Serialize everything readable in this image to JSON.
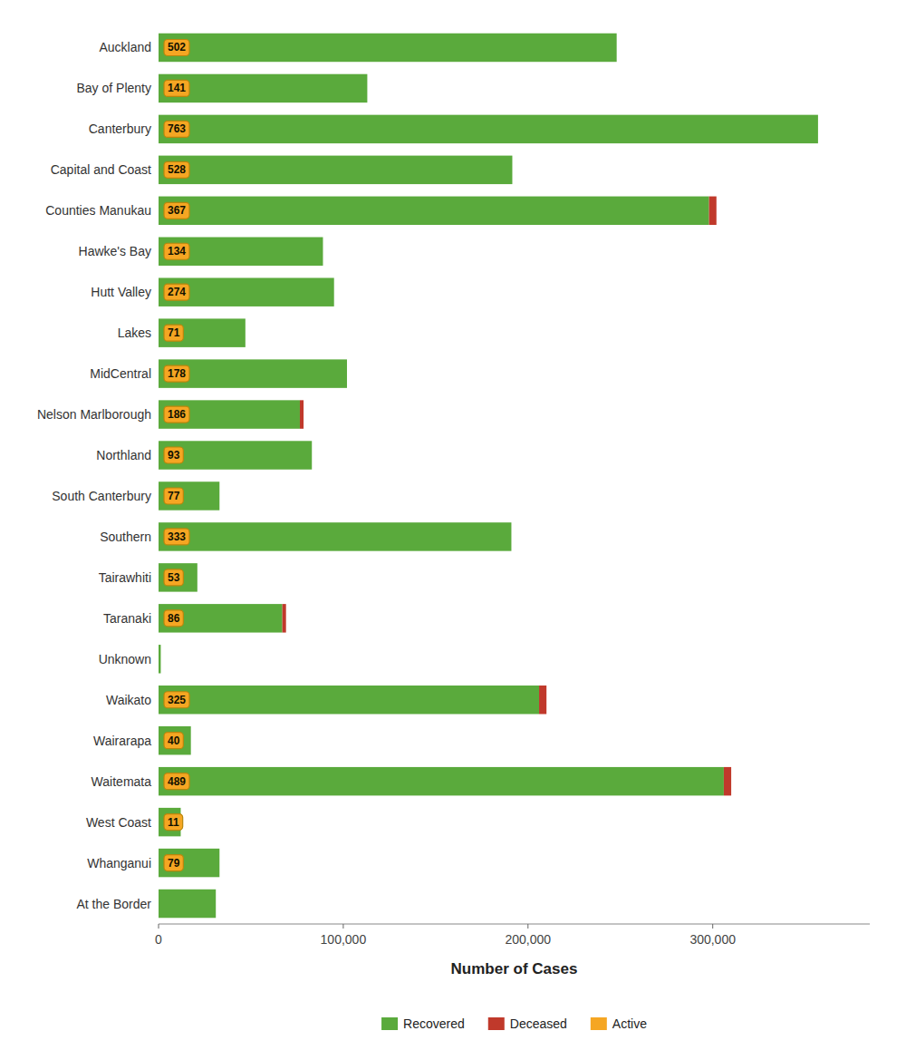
{
  "chart_data": {
    "type": "bar",
    "orientation": "horizontal",
    "stacked": true,
    "categories": [
      "Auckland",
      "Bay of Plenty",
      "Canterbury",
      "Capital and Coast",
      "Counties Manukau",
      "Hawke's Bay",
      "Hutt Valley",
      "Lakes",
      "MidCentral",
      "Nelson Marlborough",
      "Northland",
      "South Canterbury",
      "Southern",
      "Tairawhiti",
      "Taranaki",
      "Unknown",
      "Waikato",
      "Wairarapa",
      "Waitemata",
      "West Coast",
      "Whanganui",
      "At the Border"
    ],
    "series": [
      {
        "name": "Recovered",
        "color": "#5aaa3c",
        "values": [
          248000,
          113000,
          357000,
          191500,
          298000,
          89000,
          95000,
          47000,
          102000,
          76500,
          83000,
          33000,
          191000,
          21000,
          67000,
          1200,
          206000,
          17500,
          306000,
          12000,
          33000,
          31000
        ]
      },
      {
        "name": "Deceased",
        "color": "#c0392b",
        "values": [
          0,
          0,
          0,
          0,
          4000,
          0,
          0,
          0,
          0,
          2000,
          0,
          0,
          0,
          0,
          2000,
          0,
          4000,
          0,
          4000,
          0,
          0,
          0
        ]
      },
      {
        "name": "Active",
        "color": "#f5a623",
        "type": "label",
        "values": [
          502,
          141,
          763,
          528,
          367,
          134,
          274,
          71,
          178,
          186,
          93,
          77,
          333,
          53,
          86,
          null,
          325,
          40,
          489,
          11,
          79,
          null
        ]
      }
    ],
    "x_label": "Number of Cases",
    "xlim": [
      0,
      385000
    ],
    "xticks": [
      0,
      {
        "value": 100000,
        "label": "100,000"
      },
      {
        "value": 200000,
        "label": "200,000"
      },
      {
        "value": 300000,
        "label": "300,000"
      }
    ],
    "grid": false,
    "legend": "bottom"
  }
}
